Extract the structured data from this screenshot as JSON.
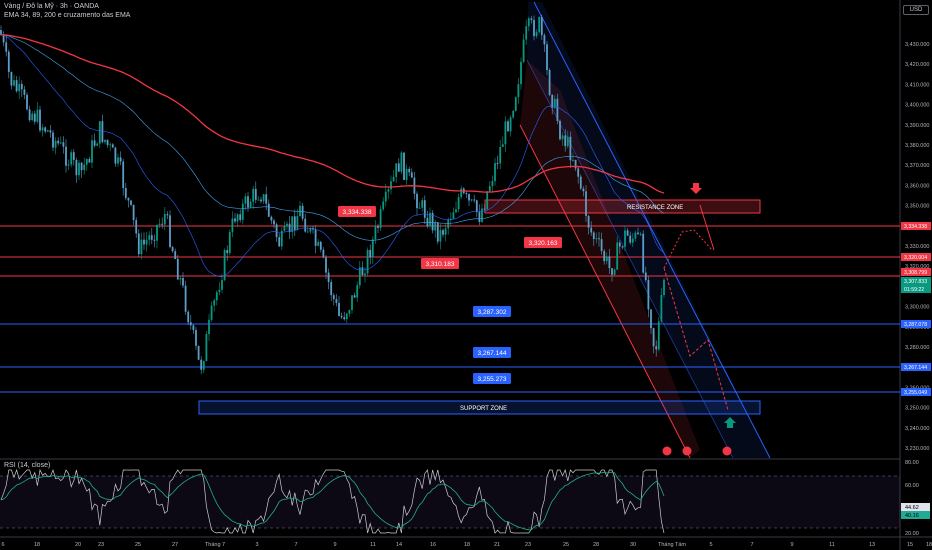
{
  "header": {
    "symbol_line": "Vàng / Đô la Mỹ · 3h · OANDA",
    "indicator_line": "EMA 34, 89, 200 e cruzamento das EMA",
    "currency": "USD"
  },
  "price_axis": {
    "ticks": [
      "3,430.000",
      "3,420.000",
      "3,410.000",
      "3,400.000",
      "3,390.000",
      "3,380.000",
      "3,370.000",
      "3,360.000",
      "3,350.000",
      "3,340.000",
      "3,330.000",
      "3,320.000",
      "3,310.000",
      "3,300.000",
      "3,290.000",
      "3,280.000",
      "3,270.000",
      "3,260.000",
      "3,250.000",
      "3,240.000",
      "3,230.000"
    ],
    "tags": [
      {
        "label": "3,334.338",
        "color": "#f23645"
      },
      {
        "label": "3,320.004",
        "color": "#f23645"
      },
      {
        "label": "3,308.799",
        "color": "#f23645"
      },
      {
        "label": "3,307.833",
        "color": "#089981"
      },
      {
        "label": "01:59:22",
        "color": "#089981"
      },
      {
        "label": "3,287.078",
        "color": "#2962ff"
      },
      {
        "label": "3,267.144",
        "color": "#2962ff"
      },
      {
        "label": "3,255.049",
        "color": "#2962ff"
      }
    ]
  },
  "time_axis": {
    "labels": [
      "6",
      "18",
      "20",
      "23",
      "25",
      "27",
      "Tháng 7",
      "3",
      "7",
      "9",
      "11",
      "14",
      "16",
      "18",
      "21",
      "23",
      "25",
      "28",
      "30",
      "Tháng Tám",
      "5",
      "7",
      "9",
      "11",
      "13",
      "15",
      "18"
    ]
  },
  "annotations": {
    "callouts": [
      {
        "label": "3,334.338",
        "color": "#f23645"
      },
      {
        "label": "3,320.163",
        "color": "#f23645"
      },
      {
        "label": "3,310.183",
        "color": "#f23645"
      },
      {
        "label": "3,287.302",
        "color": "#2962ff"
      },
      {
        "label": "3,267.144",
        "color": "#2962ff"
      },
      {
        "label": "3,255.273",
        "color": "#2962ff"
      }
    ],
    "resistance_zone": "RESISTANCE ZONE",
    "support_zone": "SUPPORT ZONE"
  },
  "rsi": {
    "title": "RSI (14, close)",
    "ticks": [
      "80.00",
      "60.00",
      "20.00"
    ],
    "value_tags": [
      {
        "label": "44.62",
        "color": "#e0e3eb"
      },
      {
        "label": "40.16",
        "color": "#22ab94"
      }
    ]
  },
  "colors": {
    "up_candle": "#089981",
    "down_candle": "#5b9ec9",
    "ema_200": "#f23645",
    "resistance": "#f23645",
    "support": "#2962ff",
    "background": "#000000"
  }
}
